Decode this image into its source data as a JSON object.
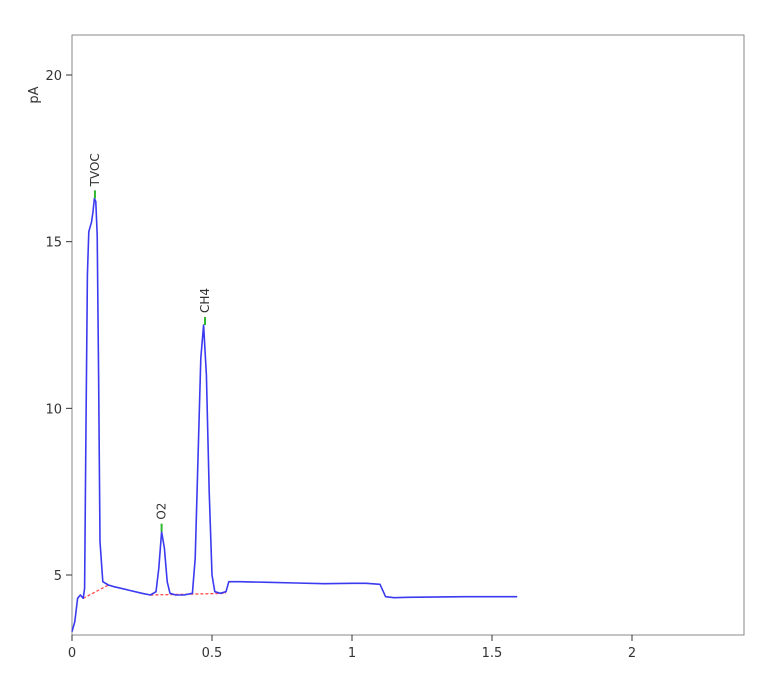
{
  "chart_data": {
    "type": "line",
    "title": "",
    "xlabel": "",
    "ylabel": "pA",
    "xlim": [
      0,
      2.4
    ],
    "ylim": [
      3.2,
      21.2
    ],
    "x_ticks": [
      0,
      0.5,
      1,
      1.5,
      2
    ],
    "x_tick_labels": [
      "0",
      "0.5",
      "1",
      "1.5",
      "2"
    ],
    "y_ticks": [
      5,
      10,
      15,
      20
    ],
    "y_tick_labels": [
      "5",
      "10",
      "15",
      "20"
    ],
    "grid": false,
    "legend": "none",
    "colors": {
      "signal": "#3a3af0",
      "baseline": "#ff4a4a",
      "peak_marker": "#2fb82f",
      "axis": "#333333",
      "frame": "#888888"
    },
    "series": [
      {
        "x": [
          0,
          0.01,
          0.02,
          0.03,
          0.04,
          0.045,
          0.05,
          0.055,
          0.06,
          0.07,
          0.075,
          0.08,
          0.085,
          0.09,
          0.095,
          0.1,
          0.11,
          0.13,
          0.15,
          0.2,
          0.25,
          0.28,
          0.3,
          0.31,
          0.32,
          0.33,
          0.34,
          0.35,
          0.37,
          0.4,
          0.43,
          0.44,
          0.45,
          0.46,
          0.47,
          0.48,
          0.49,
          0.5,
          0.51,
          0.53,
          0.55,
          0.56,
          0.6,
          0.7,
          0.8,
          0.9,
          1.0,
          1.05,
          1.1,
          1.12,
          1.15,
          1.2,
          1.4,
          1.59
        ],
        "y": [
          3.3,
          3.6,
          4.3,
          4.4,
          4.3,
          4.6,
          9.5,
          14.0,
          15.3,
          15.6,
          15.9,
          16.3,
          16.2,
          15.2,
          11.0,
          6.0,
          4.8,
          4.7,
          4.65,
          4.55,
          4.45,
          4.4,
          4.5,
          5.2,
          6.3,
          5.8,
          4.8,
          4.45,
          4.4,
          4.4,
          4.45,
          5.5,
          8.5,
          11.5,
          12.5,
          11.0,
          7.5,
          5.0,
          4.5,
          4.45,
          4.5,
          4.8,
          4.8,
          4.78,
          4.76,
          4.74,
          4.75,
          4.75,
          4.72,
          4.35,
          4.32,
          4.33,
          4.35,
          4.35
        ]
      }
    ],
    "baselines": [
      {
        "x": [
          0.04,
          0.13
        ],
        "y": [
          4.3,
          4.7
        ]
      },
      {
        "x": [
          0.28,
          0.55
        ],
        "y": [
          4.4,
          4.45
        ]
      }
    ],
    "peaks": [
      {
        "label": "TVOC",
        "x": 0.082,
        "y": 16.3
      },
      {
        "label": "O2",
        "x": 0.32,
        "y": 6.3
      },
      {
        "label": "CH4",
        "x": 0.475,
        "y": 12.5
      }
    ]
  }
}
